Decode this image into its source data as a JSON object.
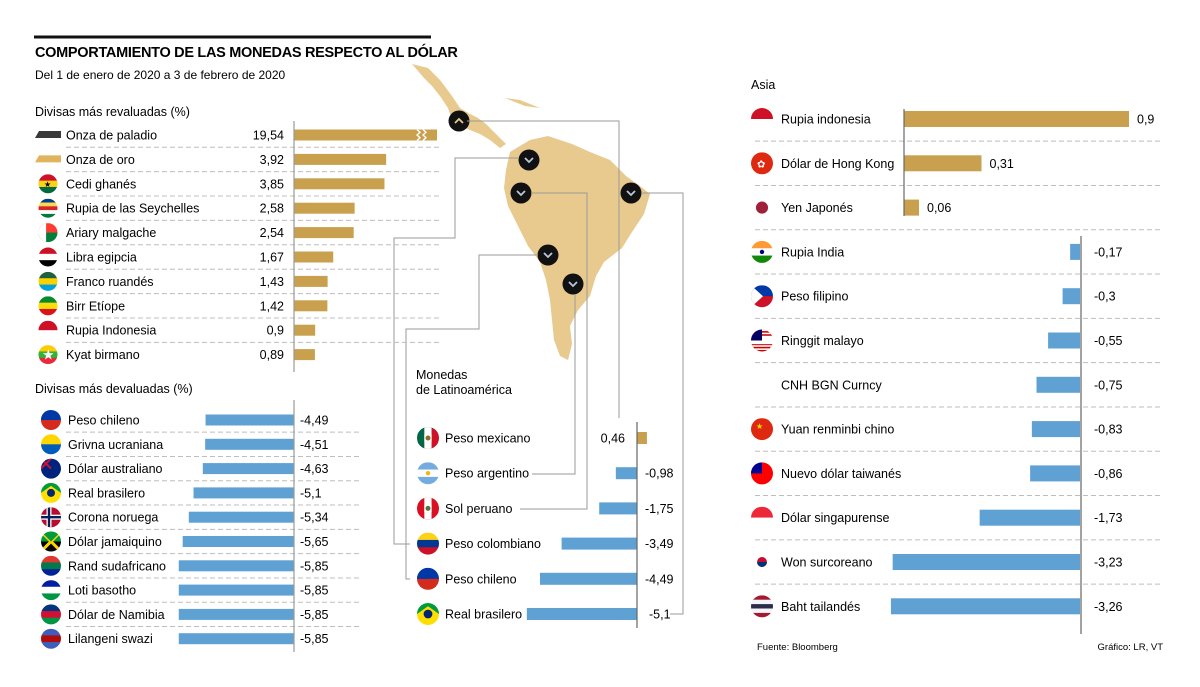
{
  "header": {
    "title": "COMPORTAMIENTO DE LAS MONEDAS RESPECTO AL DÓLAR",
    "subtitle": "Del 1 de enero de 2020 a 3 de febrero de 2020"
  },
  "colors": {
    "positive": "#c9a04d",
    "negative": "#5fa1d3",
    "map": "#e8c98e",
    "marker": "#111111",
    "axis": "#9a9a9a",
    "grid": "#bdbdbd"
  },
  "footer": {
    "source": "Fuente: Bloomberg",
    "credit": "Gráfico: LR, VT"
  },
  "chart_data": [
    {
      "type": "bar",
      "orientation": "horizontal",
      "title": "Divisas más revaluadas (%)",
      "unit": "%",
      "axis_break_on": "Onza de palladio",
      "categories": [
        "Onza de paladio",
        "Onza de oro",
        "Cedi ghanés",
        "Rupia de las Seychelles",
        "Ariary malgache",
        "Libra egipcia",
        "Franco ruandés",
        "Birr Etíope",
        "Rupia Indonesia",
        "Kyat birmano"
      ],
      "values": [
        19.54,
        3.92,
        3.85,
        2.58,
        2.54,
        1.67,
        1.43,
        1.42,
        0.9,
        0.89
      ],
      "labels": [
        "19,54",
        "3,92",
        "3,85",
        "2,58",
        "2,54",
        "1,67",
        "1,43",
        "1,42",
        "0,9",
        "0,89"
      ],
      "icons": [
        "palladium-bar-icon",
        "gold-bar-icon",
        "ghana-flag-icon",
        "seychelles-flag-icon",
        "madagascar-flag-icon",
        "egypt-flag-icon",
        "rwanda-flag-icon",
        "ethiopia-flag-icon",
        "indonesia-flag-icon",
        "myanmar-flag-icon"
      ]
    },
    {
      "type": "bar",
      "orientation": "horizontal",
      "title": "Divisas más devaluadas (%)",
      "unit": "%",
      "categories": [
        "Peso chileno",
        "Grivna ucraniana",
        "Dólar australiano",
        "Real brasilero",
        "Corona noruega",
        "Dólar jamaiquino",
        "Rand sudafricano",
        "Loti basotho",
        "Dólar de Namibia",
        "Lilangeni swazi"
      ],
      "values": [
        -4.49,
        -4.51,
        -4.63,
        -5.1,
        -5.34,
        -5.65,
        -5.85,
        -5.85,
        -5.85,
        -5.85
      ],
      "labels": [
        "-4,49",
        "-4,51",
        "-4,63",
        "-5,1",
        "-5,34",
        "-5,65",
        "-5,85",
        "-5,85",
        "-5,85",
        "-5,85"
      ],
      "icons": [
        "chile-flag-icon",
        "ukraine-flag-icon",
        "australia-flag-icon",
        "brazil-flag-icon",
        "norway-flag-icon",
        "jamaica-flag-icon",
        "south-africa-flag-icon",
        "lesotho-flag-icon",
        "namibia-flag-icon",
        "eswatini-flag-icon"
      ]
    },
    {
      "type": "bar",
      "orientation": "horizontal",
      "title": "Monedas de Latinoamérica",
      "title_lines": [
        "Monedas",
        "de Latinoamérica"
      ],
      "unit": "%",
      "categories": [
        "Peso mexicano",
        "Peso argentino",
        "Sol peruano",
        "Peso colombiano",
        "Peso chileno",
        "Real brasilero"
      ],
      "values": [
        0.46,
        -0.98,
        -1.75,
        -3.49,
        -4.49,
        -5.1
      ],
      "labels": [
        "0,46",
        "-0,98",
        "-1,75",
        "-3,49",
        "-4,49",
        "-5,1"
      ],
      "icons": [
        "mexico-flag-icon",
        "argentina-flag-icon",
        "peru-flag-icon",
        "colombia-flag-icon",
        "chile-flag-icon",
        "brazil-flag-icon"
      ],
      "map_markers": [
        {
          "country": "México",
          "direction": "up"
        },
        {
          "country": "Colombia",
          "direction": "down"
        },
        {
          "country": "Perú",
          "direction": "down"
        },
        {
          "country": "Brasil",
          "direction": "down"
        },
        {
          "country": "Chile",
          "direction": "down"
        },
        {
          "country": "Argentina",
          "direction": "down"
        }
      ]
    },
    {
      "type": "bar",
      "orientation": "horizontal",
      "title": "Asia",
      "unit": "%",
      "categories": [
        "Rupia indonesia",
        "Dólar de Hong Kong",
        "Yen Japonés",
        "Rupia India",
        "Peso filipino",
        "Ringgit malayo",
        "CNH BGN Curncy",
        "Yuan renminbi chino",
        "Nuevo dólar taiwanés",
        "Dólar singapurense",
        "Won surcoreano",
        "Baht tailandés"
      ],
      "values": [
        0.9,
        0.31,
        0.06,
        -0.17,
        -0.3,
        -0.55,
        -0.75,
        -0.83,
        -0.86,
        -1.73,
        -3.23,
        -3.26
      ],
      "labels": [
        "0,9",
        "0,31",
        "0,06",
        "-0,17",
        "-0,3",
        "-0,55",
        "-0,75",
        "-0,83",
        "-0,86",
        "-1,73",
        "-3,23",
        "-3,26"
      ],
      "icons": [
        "indonesia-flag-icon",
        "hong-kong-flag-icon",
        "japan-flag-icon",
        "india-flag-icon",
        "philippines-flag-icon",
        "malaysia-flag-icon",
        "",
        "china-flag-icon",
        "taiwan-flag-icon",
        "singapore-flag-icon",
        "south-korea-flag-icon",
        "thailand-flag-icon"
      ]
    }
  ]
}
